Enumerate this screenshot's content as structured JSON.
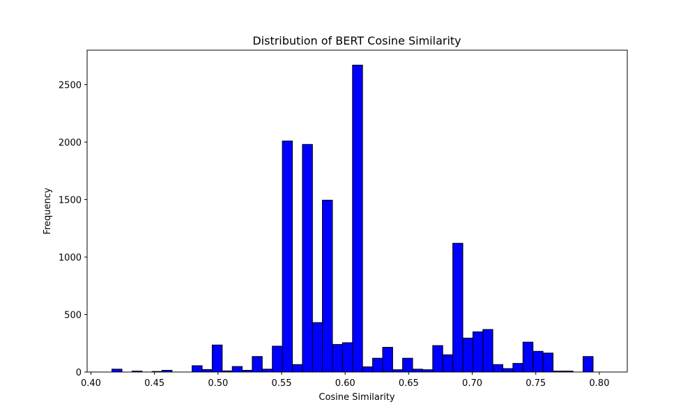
{
  "chart_data": {
    "type": "bar",
    "title": "Distribution of BERT Cosine Similarity",
    "xlabel": "Cosine Similarity",
    "ylabel": "Frequency",
    "xlim": [
      0.397,
      0.822
    ],
    "ylim": [
      0,
      2800
    ],
    "xticks": [
      0.4,
      0.45,
      0.5,
      0.55,
      0.6,
      0.65,
      0.7,
      0.75,
      0.8
    ],
    "xtick_labels": [
      "0.40",
      "0.45",
      "0.50",
      "0.55",
      "0.60",
      "0.65",
      "0.70",
      "0.75",
      "0.80"
    ],
    "yticks": [
      0,
      500,
      1000,
      1500,
      2000,
      2500
    ],
    "ytick_labels": [
      "0",
      "500",
      "1000",
      "1500",
      "2000",
      "2500"
    ],
    "bin_edges": [
      0.4165,
      0.4244,
      0.4323,
      0.4402,
      0.4481,
      0.4559,
      0.4638,
      0.4717,
      0.4796,
      0.4875,
      0.4954,
      0.5033,
      0.5112,
      0.519,
      0.5269,
      0.5348,
      0.5427,
      0.5506,
      0.5585,
      0.5664,
      0.5743,
      0.5821,
      0.59,
      0.5979,
      0.6058,
      0.6137,
      0.6216,
      0.6295,
      0.6374,
      0.6452,
      0.6531,
      0.661,
      0.6689,
      0.6768,
      0.6847,
      0.6926,
      0.7005,
      0.7084,
      0.7162,
      0.7241,
      0.732,
      0.7399,
      0.7478,
      0.7557,
      0.7636,
      0.7715,
      0.7793,
      0.7872,
      0.7951,
      0.803
    ],
    "values": [
      25,
      0,
      8,
      0,
      5,
      15,
      0,
      0,
      55,
      22,
      235,
      10,
      48,
      15,
      135,
      25,
      225,
      2010,
      65,
      1980,
      430,
      1495,
      240,
      255,
      2670,
      45,
      120,
      215,
      20,
      120,
      25,
      20,
      230,
      150,
      1120,
      295,
      350,
      370,
      65,
      30,
      75,
      260,
      180,
      165,
      8,
      8,
      0,
      135,
      0,
      50
    ],
    "bar_color": "#0000ff",
    "edge_color": "#000000",
    "grid": false
  }
}
